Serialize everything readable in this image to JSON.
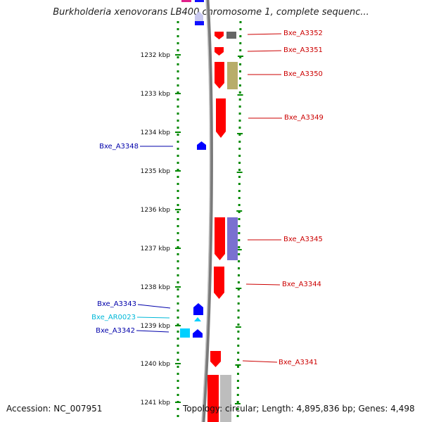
{
  "header": {
    "title": "Burkholderia xenovorans LB400 chromosome 1, complete sequenc..."
  },
  "footer": {
    "accession": "Accession: NC_007951",
    "summary": "Topology: circular; Length: 4,895,836 bp; Genes: 4,498"
  },
  "colors": {
    "forward_gene": "#ff0000",
    "reverse_gene": "#0000ff",
    "rna_gene": "#00d0ff",
    "backbone": "#7a7a7a",
    "tick": "#008800",
    "label_forward": "#cc0000",
    "label_reverse": "#0000aa",
    "label_rna": "#00b8d8"
  },
  "ruler": {
    "unit": "kbp",
    "ticks": [
      "1232 kbp",
      "1233 kbp",
      "1234 kbp",
      "1235 kbp",
      "1236 kbp",
      "1237 kbp",
      "1238 kbp",
      "1239 kbp",
      "1240 kbp",
      "1241 kbp"
    ]
  },
  "features": [
    {
      "label": "Bxe_A3352",
      "strand": "forward"
    },
    {
      "label": "Bxe_A3351",
      "strand": "forward"
    },
    {
      "label": "Bxe_A3350",
      "strand": "forward"
    },
    {
      "label": "Bxe_A3349",
      "strand": "forward"
    },
    {
      "label": "Bxe_A3348",
      "strand": "reverse"
    },
    {
      "label": "Bxe_A3345",
      "strand": "forward"
    },
    {
      "label": "Bxe_A3344",
      "strand": "forward"
    },
    {
      "label": "Bxe_A3343",
      "strand": "reverse"
    },
    {
      "label": "Bxe_AR0023",
      "strand": "rna"
    },
    {
      "label": "Bxe_A3342",
      "strand": "reverse"
    },
    {
      "label": "Bxe_A3341",
      "strand": "forward"
    }
  ]
}
